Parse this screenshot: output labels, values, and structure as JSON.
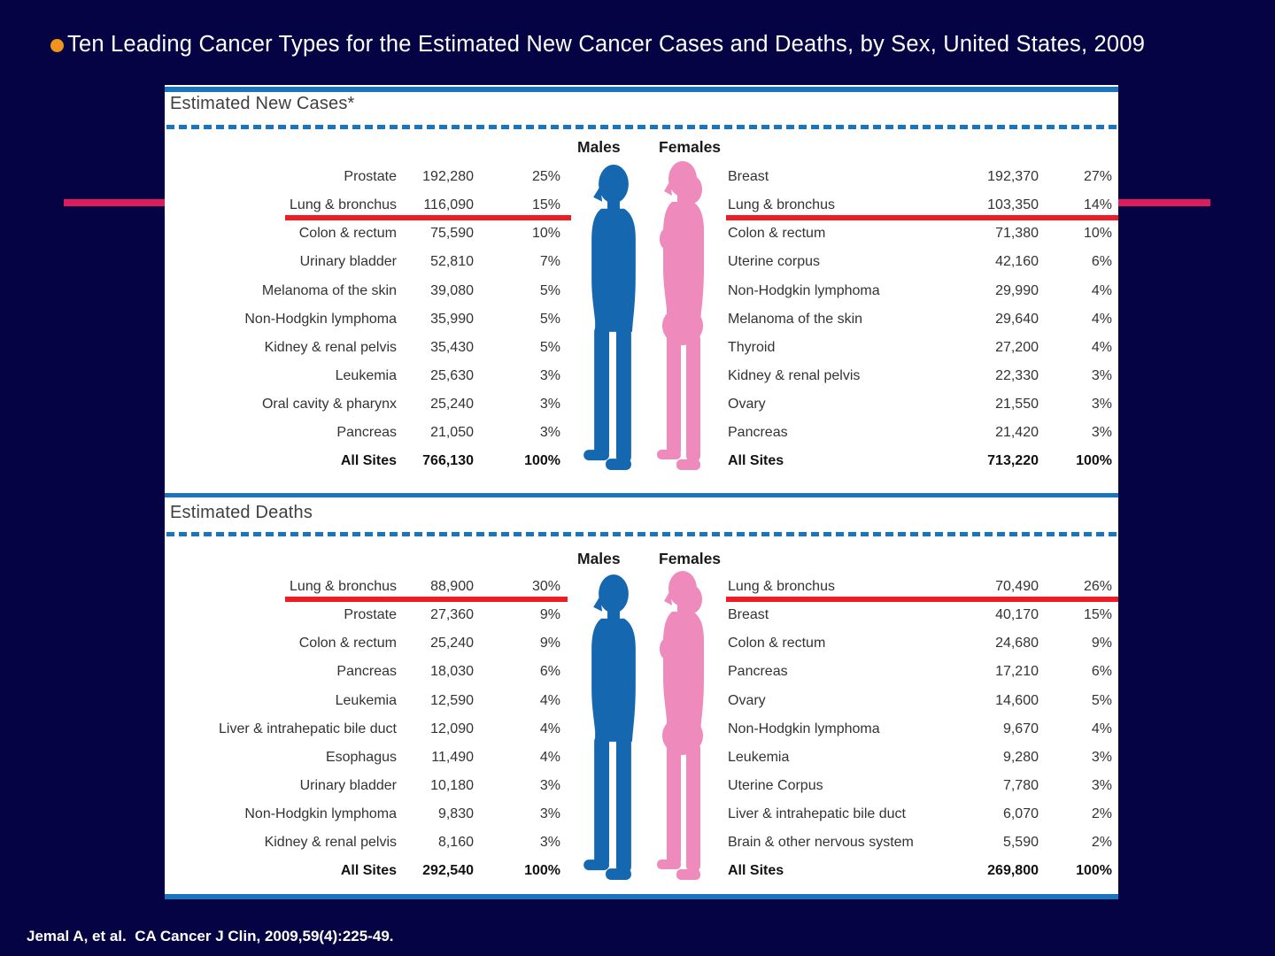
{
  "slide": {
    "title": "Ten Leading Cancer Types for the Estimated New Cancer Cases and Deaths, by Sex, United States, 2009",
    "citation": "Jemal A, et al.  CA Cancer J Clin, 2009,59(4):225-49."
  },
  "colors": {
    "background": "#050343",
    "panel": "#FFFFFF",
    "blue_line": "#1B75BC",
    "red_underline": "#EE1C25",
    "crimson_accent": "#DC1C5C",
    "orange_bullet": "#F0941E",
    "male_silhouette": "#1568B0",
    "female_silhouette": "#EF8ABD"
  },
  "sections": [
    {
      "header": "Estimated New Cases*",
      "males_label": "Males",
      "females_label": "Females",
      "male_rows": [
        {
          "label": "Prostate",
          "value": "192,280",
          "pct": "25%"
        },
        {
          "label": "Lung & bronchus",
          "value": "116,090",
          "pct": "15%",
          "underlined": true
        },
        {
          "label": "Colon & rectum",
          "value": "75,590",
          "pct": "10%"
        },
        {
          "label": "Urinary bladder",
          "value": "52,810",
          "pct": "7%"
        },
        {
          "label": "Melanoma of the skin",
          "value": "39,080",
          "pct": "5%"
        },
        {
          "label": "Non-Hodgkin lymphoma",
          "value": "35,990",
          "pct": "5%"
        },
        {
          "label": "Kidney & renal pelvis",
          "value": "35,430",
          "pct": "5%"
        },
        {
          "label": "Leukemia",
          "value": "25,630",
          "pct": "3%"
        },
        {
          "label": "Oral cavity & pharynx",
          "value": "25,240",
          "pct": "3%"
        },
        {
          "label": "Pancreas",
          "value": "21,050",
          "pct": "3%"
        },
        {
          "label": "All Sites",
          "value": "766,130",
          "pct": "100%",
          "bold": true
        }
      ],
      "female_rows": [
        {
          "label": "Breast",
          "value": "192,370",
          "pct": "27%"
        },
        {
          "label": "Lung & bronchus",
          "value": "103,350",
          "pct": "14%",
          "underlined": true
        },
        {
          "label": "Colon & rectum",
          "value": "71,380",
          "pct": "10%"
        },
        {
          "label": "Uterine corpus",
          "value": "42,160",
          "pct": "6%"
        },
        {
          "label": "Non-Hodgkin lymphoma",
          "value": "29,990",
          "pct": "4%"
        },
        {
          "label": "Melanoma of the skin",
          "value": "29,640",
          "pct": "4%"
        },
        {
          "label": "Thyroid",
          "value": "27,200",
          "pct": "4%"
        },
        {
          "label": "Kidney & renal pelvis",
          "value": "22,330",
          "pct": "3%"
        },
        {
          "label": "Ovary",
          "value": "21,550",
          "pct": "3%"
        },
        {
          "label": "Pancreas",
          "value": "21,420",
          "pct": "3%"
        },
        {
          "label": "All Sites",
          "value": "713,220",
          "pct": "100%",
          "bold": true
        }
      ]
    },
    {
      "header": "Estimated Deaths",
      "males_label": "Males",
      "females_label": "Females",
      "male_rows": [
        {
          "label": "Lung & bronchus",
          "value": "88,900",
          "pct": "30%",
          "underlined": true
        },
        {
          "label": "Prostate",
          "value": "27,360",
          "pct": "9%"
        },
        {
          "label": "Colon & rectum",
          "value": "25,240",
          "pct": "9%"
        },
        {
          "label": "Pancreas",
          "value": "18,030",
          "pct": "6%"
        },
        {
          "label": "Leukemia",
          "value": "12,590",
          "pct": "4%"
        },
        {
          "label": "Liver & intrahepatic bile duct",
          "value": "12,090",
          "pct": "4%"
        },
        {
          "label": "Esophagus",
          "value": "11,490",
          "pct": "4%"
        },
        {
          "label": "Urinary bladder",
          "value": "10,180",
          "pct": "3%"
        },
        {
          "label": "Non-Hodgkin lymphoma",
          "value": "9,830",
          "pct": "3%"
        },
        {
          "label": "Kidney & renal pelvis",
          "value": "8,160",
          "pct": "3%"
        },
        {
          "label": "All Sites",
          "value": "292,540",
          "pct": "100%",
          "bold": true
        }
      ],
      "female_rows": [
        {
          "label": "Lung & bronchus",
          "value": "70,490",
          "pct": "26%",
          "underlined": true
        },
        {
          "label": "Breast",
          "value": "40,170",
          "pct": "15%"
        },
        {
          "label": "Colon & rectum",
          "value": "24,680",
          "pct": "9%"
        },
        {
          "label": "Pancreas",
          "value": "17,210",
          "pct": "6%"
        },
        {
          "label": "Ovary",
          "value": "14,600",
          "pct": "5%"
        },
        {
          "label": "Non-Hodgkin lymphoma",
          "value": "9,670",
          "pct": "4%"
        },
        {
          "label": "Leukemia",
          "value": "9,280",
          "pct": "3%"
        },
        {
          "label": "Uterine Corpus",
          "value": "7,780",
          "pct": "3%"
        },
        {
          "label": "Liver & intrahepatic bile duct",
          "value": "6,070",
          "pct": "2%"
        },
        {
          "label": "Brain & other nervous system",
          "value": "5,590",
          "pct": "2%"
        },
        {
          "label": "All Sites",
          "value": "269,800",
          "pct": "100%",
          "bold": true
        }
      ]
    }
  ],
  "chart_data": {
    "type": "table",
    "title": "Ten Leading Cancer Types for the Estimated New Cancer Cases and Deaths, by Sex, United States, 2009",
    "tables": [
      {
        "section": "Estimated New Cases*",
        "males": {
          "sites": [
            "Prostate",
            "Lung & bronchus",
            "Colon & rectum",
            "Urinary bladder",
            "Melanoma of the skin",
            "Non-Hodgkin lymphoma",
            "Kidney & renal pelvis",
            "Leukemia",
            "Oral cavity & pharynx",
            "Pancreas"
          ],
          "counts": [
            192280,
            116090,
            75590,
            52810,
            39080,
            35990,
            35430,
            25630,
            25240,
            21050
          ],
          "percents": [
            25,
            15,
            10,
            7,
            5,
            5,
            5,
            3,
            3,
            3
          ],
          "all_sites_count": 766130,
          "all_sites_percent": 100
        },
        "females": {
          "sites": [
            "Breast",
            "Lung & bronchus",
            "Colon & rectum",
            "Uterine corpus",
            "Non-Hodgkin lymphoma",
            "Melanoma of the skin",
            "Thyroid",
            "Kidney & renal pelvis",
            "Ovary",
            "Pancreas"
          ],
          "counts": [
            192370,
            103350,
            71380,
            42160,
            29990,
            29640,
            27200,
            22330,
            21550,
            21420
          ],
          "percents": [
            27,
            14,
            10,
            6,
            4,
            4,
            4,
            3,
            3,
            3
          ],
          "all_sites_count": 713220,
          "all_sites_percent": 100
        },
        "highlighted_row": "Lung & bronchus"
      },
      {
        "section": "Estimated Deaths",
        "males": {
          "sites": [
            "Lung & bronchus",
            "Prostate",
            "Colon & rectum",
            "Pancreas",
            "Leukemia",
            "Liver & intrahepatic bile duct",
            "Esophagus",
            "Urinary bladder",
            "Non-Hodgkin lymphoma",
            "Kidney & renal pelvis"
          ],
          "counts": [
            88900,
            27360,
            25240,
            18030,
            12590,
            12090,
            11490,
            10180,
            9830,
            8160
          ],
          "percents": [
            30,
            9,
            9,
            6,
            4,
            4,
            4,
            3,
            3,
            3
          ],
          "all_sites_count": 292540,
          "all_sites_percent": 100
        },
        "females": {
          "sites": [
            "Lung & bronchus",
            "Breast",
            "Colon & rectum",
            "Pancreas",
            "Ovary",
            "Non-Hodgkin lymphoma",
            "Leukemia",
            "Uterine Corpus",
            "Liver & intrahepatic bile duct",
            "Brain & other nervous system"
          ],
          "counts": [
            70490,
            40170,
            24680,
            17210,
            14600,
            9670,
            9280,
            7780,
            6070,
            5590
          ],
          "percents": [
            26,
            15,
            9,
            6,
            5,
            4,
            3,
            3,
            2,
            2
          ],
          "all_sites_count": 269800,
          "all_sites_percent": 100
        },
        "highlighted_row": "Lung & bronchus"
      }
    ]
  }
}
